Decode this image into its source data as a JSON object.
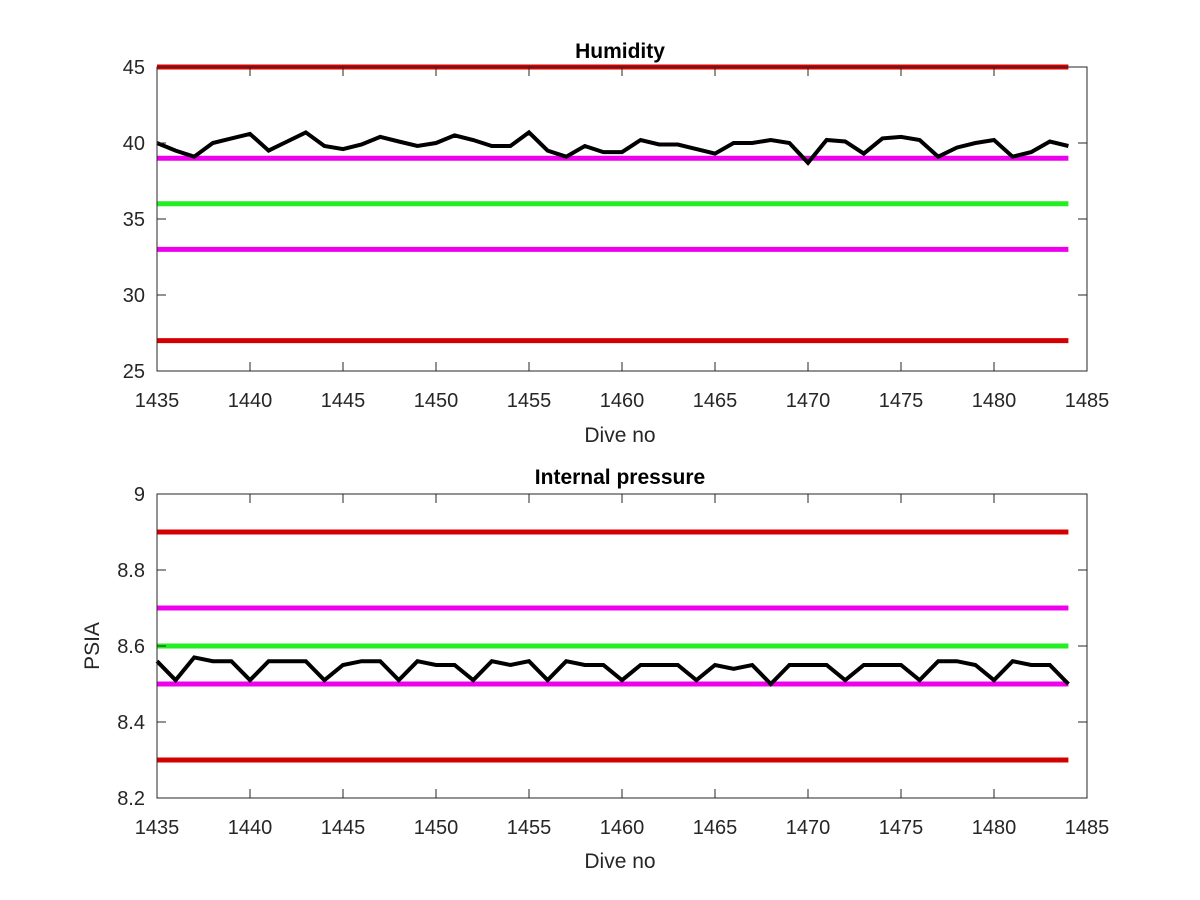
{
  "colors": {
    "limit_outer": "#d40000",
    "limit_inner": "#ee00ee",
    "target": "#22ee22",
    "measurement": "#000000",
    "axis": "#262626",
    "background": "#ffffff"
  },
  "chart_data": [
    {
      "type": "line",
      "title": "Humidity",
      "xlabel": "Dive no",
      "ylabel": "",
      "xlim": [
        1435,
        1485
      ],
      "ylim": [
        25,
        45
      ],
      "xticks": [
        1435,
        1440,
        1445,
        1450,
        1455,
        1460,
        1465,
        1470,
        1475,
        1480,
        1485
      ],
      "yticks": [
        25,
        30,
        35,
        40,
        45
      ],
      "grid": false,
      "reference_lines": [
        {
          "y": 45,
          "color_key": "limit_outer"
        },
        {
          "y": 39,
          "color_key": "limit_inner"
        },
        {
          "y": 36,
          "color_key": "target"
        },
        {
          "y": 33,
          "color_key": "limit_inner"
        },
        {
          "y": 27,
          "color_key": "limit_outer"
        }
      ],
      "series": [
        {
          "color_key": "measurement",
          "x": [
            1435,
            1436,
            1437,
            1438,
            1439,
            1440,
            1441,
            1442,
            1443,
            1444,
            1445,
            1446,
            1447,
            1448,
            1449,
            1450,
            1451,
            1452,
            1453,
            1454,
            1455,
            1456,
            1457,
            1458,
            1459,
            1460,
            1461,
            1462,
            1463,
            1464,
            1465,
            1466,
            1467,
            1468,
            1469,
            1470,
            1471,
            1472,
            1473,
            1474,
            1475,
            1476,
            1477,
            1478,
            1479,
            1480,
            1481,
            1482,
            1483,
            1484
          ],
          "y": [
            40.0,
            39.5,
            39.1,
            40.0,
            40.3,
            40.6,
            39.5,
            40.1,
            40.7,
            39.8,
            39.6,
            39.9,
            40.4,
            40.1,
            39.8,
            40.0,
            40.5,
            40.2,
            39.8,
            39.8,
            40.7,
            39.5,
            39.1,
            39.8,
            39.4,
            39.4,
            40.2,
            39.9,
            39.9,
            39.6,
            39.3,
            40.0,
            40.0,
            40.2,
            40.0,
            38.7,
            40.2,
            40.1,
            39.3,
            40.3,
            40.4,
            40.2,
            39.1,
            39.7,
            40.0,
            40.2,
            39.1,
            39.4,
            40.1,
            39.8
          ]
        }
      ]
    },
    {
      "type": "line",
      "title": "Internal pressure",
      "xlabel": "Dive no",
      "ylabel": "PSIA",
      "xlim": [
        1435,
        1485
      ],
      "ylim": [
        8.2,
        9
      ],
      "xticks": [
        1435,
        1440,
        1445,
        1450,
        1455,
        1460,
        1465,
        1470,
        1475,
        1480,
        1485
      ],
      "yticks": [
        8.2,
        8.4,
        8.6,
        8.8,
        9
      ],
      "grid": false,
      "reference_lines": [
        {
          "y": 8.9,
          "color_key": "limit_outer"
        },
        {
          "y": 8.7,
          "color_key": "limit_inner"
        },
        {
          "y": 8.6,
          "color_key": "target"
        },
        {
          "y": 8.5,
          "color_key": "limit_inner"
        },
        {
          "y": 8.3,
          "color_key": "limit_outer"
        }
      ],
      "series": [
        {
          "color_key": "measurement",
          "x": [
            1435,
            1436,
            1437,
            1438,
            1439,
            1440,
            1441,
            1442,
            1443,
            1444,
            1445,
            1446,
            1447,
            1448,
            1449,
            1450,
            1451,
            1452,
            1453,
            1454,
            1455,
            1456,
            1457,
            1458,
            1459,
            1460,
            1461,
            1462,
            1463,
            1464,
            1465,
            1466,
            1467,
            1468,
            1469,
            1470,
            1471,
            1472,
            1473,
            1474,
            1475,
            1476,
            1477,
            1478,
            1479,
            1480,
            1481,
            1482,
            1483,
            1484
          ],
          "y": [
            8.56,
            8.51,
            8.57,
            8.56,
            8.56,
            8.51,
            8.56,
            8.56,
            8.56,
            8.51,
            8.55,
            8.56,
            8.56,
            8.51,
            8.56,
            8.55,
            8.55,
            8.51,
            8.56,
            8.55,
            8.56,
            8.51,
            8.56,
            8.55,
            8.55,
            8.51,
            8.55,
            8.55,
            8.55,
            8.51,
            8.55,
            8.54,
            8.55,
            8.5,
            8.55,
            8.55,
            8.55,
            8.51,
            8.55,
            8.55,
            8.55,
            8.51,
            8.56,
            8.56,
            8.55,
            8.51,
            8.56,
            8.55,
            8.55,
            8.5
          ]
        }
      ]
    }
  ]
}
